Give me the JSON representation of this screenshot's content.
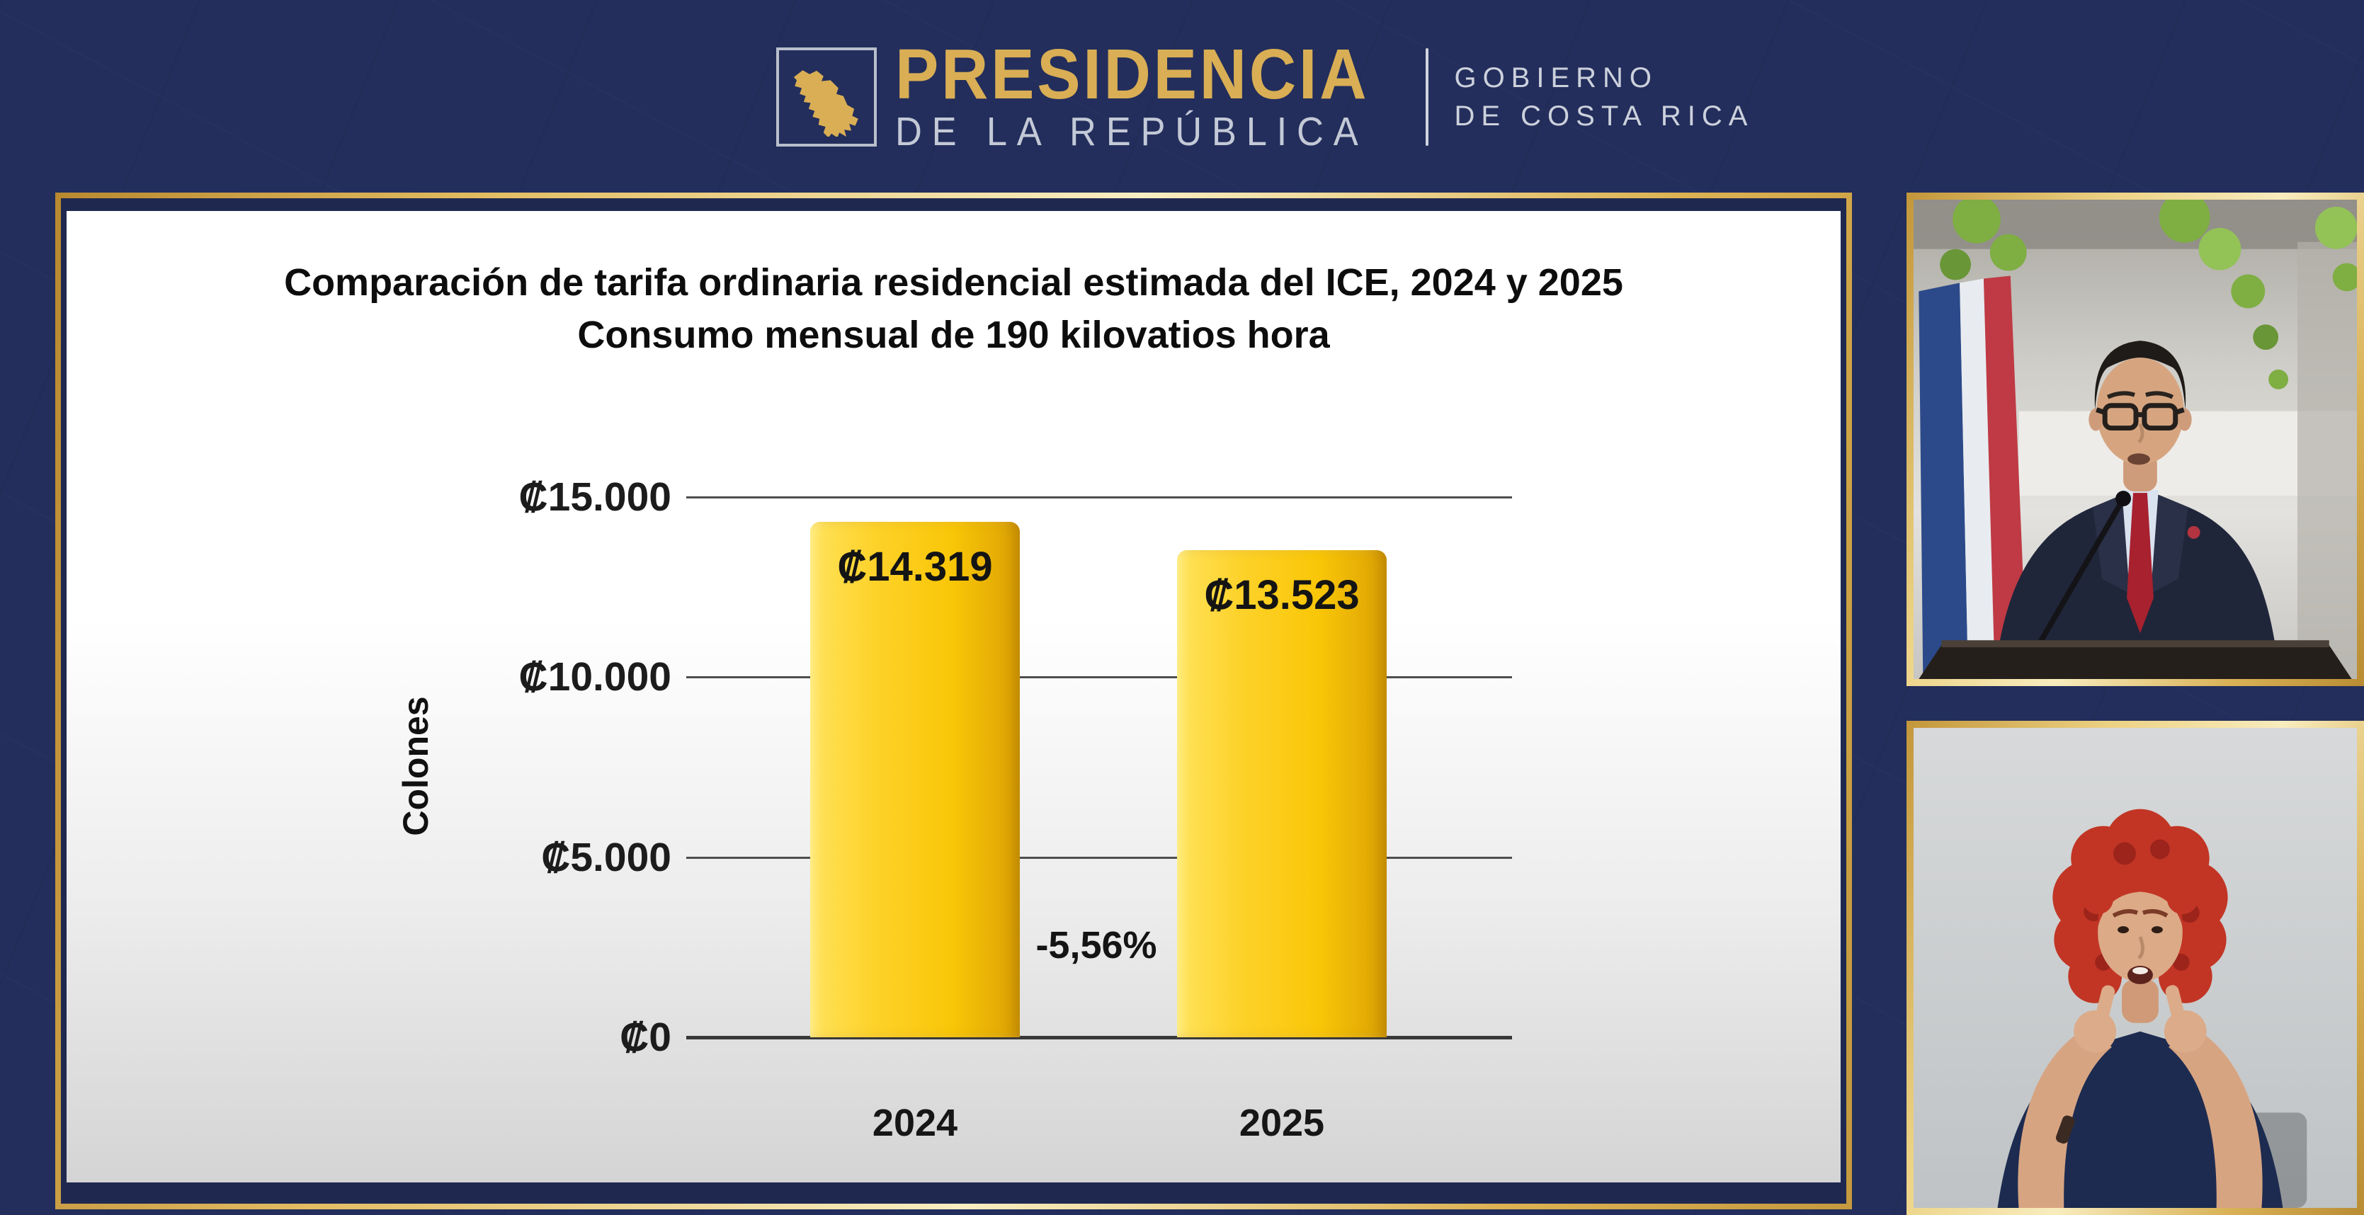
{
  "header": {
    "brand_title": "PRESIDENCIA",
    "brand_subtitle": "DE LA REPÚBLICA",
    "gov_line1": "GOBIERNO",
    "gov_line2": "DE COSTA RICA"
  },
  "colors": {
    "background_navy": "#232e5c",
    "frame_gold": "#d9b257",
    "brand_gold": "#d9ae54",
    "silver_text": "#c3c9d6",
    "bar_yellow": "#fcca12",
    "gridline_gray": "#4e4e4e"
  },
  "chart_data": {
    "type": "bar",
    "title_line1": "Comparación de tarifa ordinaria residencial estimada del ICE, 2024 y 2025",
    "title_line2": "Consumo mensual de 190 kilovatios hora",
    "xlabel": "",
    "ylabel": "Colones",
    "ymin": 0,
    "ymax": 15000,
    "grid": true,
    "legend": false,
    "categories": [
      "2024",
      "2025"
    ],
    "values": [
      14319,
      13523
    ],
    "value_labels": [
      "₡14.319",
      "₡13.523"
    ],
    "yticks": [
      {
        "value": 15000,
        "label": "₡15.000"
      },
      {
        "value": 10000,
        "label": "₡10.000"
      },
      {
        "value": 5000,
        "label": "₡5.000"
      },
      {
        "value": 0,
        "label": "₡0"
      }
    ],
    "annotation": {
      "text": "-5,56%"
    }
  },
  "videos": {
    "speaker_panel": {
      "description": "Speaker in dark suit, red tie and glasses at a podium with microphone, Costa Rica flag and green foliage behind"
    },
    "interpreter_panel": {
      "description": "Sign-language interpreter with curly red hair and navy sleeveless top, signing with both hands"
    }
  }
}
